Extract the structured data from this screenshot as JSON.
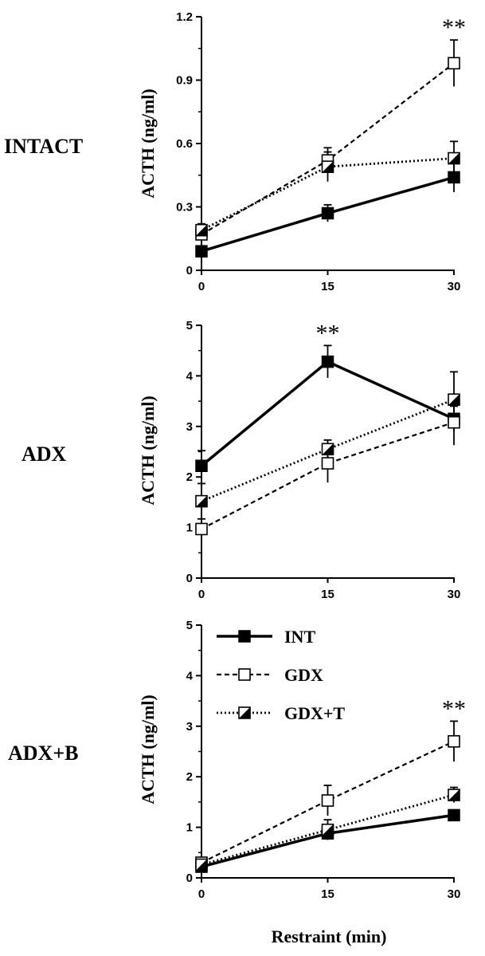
{
  "chart_data": [
    {
      "type": "line",
      "panel_label": "INTACT",
      "ylabel": "ACTH (ng/ml)",
      "xlabel": "",
      "x": [
        0,
        15,
        30
      ],
      "x_ticks": [
        "0",
        "15",
        "30"
      ],
      "ylim": [
        0,
        1.2
      ],
      "y_ticks": [
        "0",
        "0.3",
        "0.6",
        "0.9",
        "1.2"
      ],
      "series": [
        {
          "name": "INT",
          "values": [
            0.09,
            0.27,
            0.44
          ],
          "errors": [
            0.02,
            0.04,
            0.07
          ]
        },
        {
          "name": "GDX",
          "values": [
            0.17,
            0.52,
            0.98
          ],
          "errors": [
            0.03,
            0.06,
            0.11
          ]
        },
        {
          "name": "GDX+T",
          "values": [
            0.19,
            0.49,
            0.53
          ],
          "errors": [
            0.03,
            0.07,
            0.08
          ]
        }
      ],
      "annotations": [
        {
          "x": 30,
          "text": "**"
        }
      ]
    },
    {
      "type": "line",
      "panel_label": "ADX",
      "ylabel": "ACTH (ng/ml)",
      "xlabel": "",
      "x": [
        0,
        15,
        30
      ],
      "x_ticks": [
        "0",
        "15",
        "30"
      ],
      "ylim": [
        0,
        5
      ],
      "y_ticks": [
        "0",
        "1",
        "2",
        "3",
        "4",
        "5"
      ],
      "series": [
        {
          "name": "INT",
          "values": [
            2.22,
            4.28,
            3.15
          ],
          "errors": [
            0.3,
            0.32,
            0.25
          ]
        },
        {
          "name": "GDX",
          "values": [
            0.97,
            2.27,
            3.08
          ],
          "errors": [
            0.2,
            0.38,
            0.45
          ]
        },
        {
          "name": "GDX+T",
          "values": [
            1.52,
            2.55,
            3.53
          ],
          "errors": [
            0.35,
            0.18,
            0.55
          ]
        }
      ],
      "annotations": [
        {
          "x": 15,
          "text": "**"
        }
      ]
    },
    {
      "type": "line",
      "panel_label": "ADX+B",
      "ylabel": "ACTH (ng/ml)",
      "xlabel": "Restraint (min)",
      "x": [
        0,
        15,
        30
      ],
      "x_ticks": [
        "0",
        "15",
        "30"
      ],
      "ylim": [
        0,
        5
      ],
      "y_ticks": [
        "0",
        "1",
        "2",
        "3",
        "4",
        "5"
      ],
      "series": [
        {
          "name": "INT",
          "values": [
            0.22,
            0.88,
            1.24
          ],
          "errors": [
            0.05,
            0.12,
            0.09
          ]
        },
        {
          "name": "GDX",
          "values": [
            0.3,
            1.53,
            2.7
          ],
          "errors": [
            0.07,
            0.3,
            0.4
          ]
        },
        {
          "name": "GDX+T",
          "values": [
            0.26,
            0.95,
            1.64
          ],
          "errors": [
            0.06,
            0.2,
            0.15
          ]
        }
      ],
      "annotations": [
        {
          "x": 30,
          "text": "**"
        }
      ]
    }
  ],
  "legend": {
    "placement": "top-left of bottom panel",
    "items": [
      {
        "name": "INT",
        "marker": "filled-square",
        "line": "solid"
      },
      {
        "name": "GDX",
        "marker": "open-square",
        "line": "dashed"
      },
      {
        "name": "GDX+T",
        "marker": "half-filled-square",
        "line": "dotted"
      }
    ]
  },
  "colors": {
    "ink": "#000000",
    "background": "#ffffff"
  }
}
